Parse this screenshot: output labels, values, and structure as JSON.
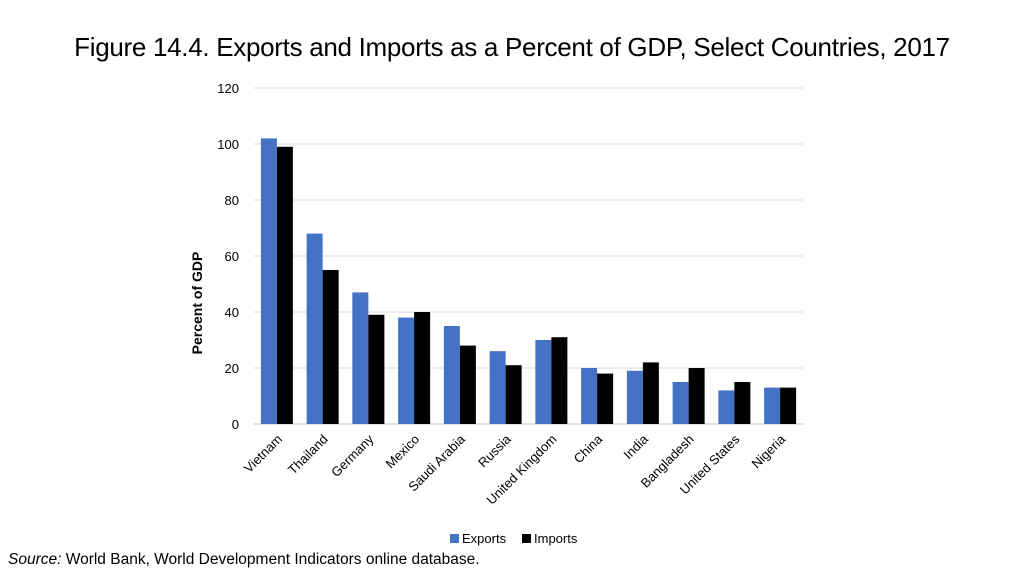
{
  "title": "Figure 14.4.  Exports and Imports as a Percent of GDP, Select Countries, 2017",
  "source": {
    "label": "Source:",
    "text": "World Bank, World Development Indicators online database."
  },
  "colors": {
    "exports": "#4472C4",
    "imports": "#000000",
    "grid": "#d9d9d9",
    "axis": "#bfbfbf"
  },
  "chart_data": {
    "type": "bar",
    "ylabel": "Percent of GDP",
    "xlabel": "",
    "ylim": [
      0,
      120
    ],
    "yticks": [
      0,
      20,
      40,
      60,
      80,
      100,
      120
    ],
    "grid": true,
    "legend": "bottom",
    "categories": [
      "Vietnam",
      "Thailand",
      "Germany",
      "Mexico",
      "Saudi Arabia",
      "Russia",
      "United Kingdom",
      "China",
      "India",
      "Bangladesh",
      "United States",
      "Nigeria"
    ],
    "series": [
      {
        "name": "Exports",
        "values": [
          102,
          68,
          47,
          38,
          35,
          26,
          30,
          20,
          19,
          15,
          12,
          13
        ]
      },
      {
        "name": "Imports",
        "values": [
          99,
          55,
          39,
          40,
          28,
          21,
          31,
          18,
          22,
          20,
          15,
          13
        ]
      }
    ]
  }
}
